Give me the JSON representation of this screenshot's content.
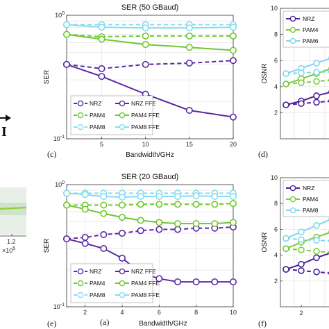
{
  "colors": {
    "nrz": "#5b2aa5",
    "pam4": "#6fc72f",
    "pam8": "#86dcef",
    "nrz_right": "#4b1f97",
    "pam4_right": "#78cc38",
    "pam8_right": "#7fd6ee",
    "left_strip_trace": "#8fd03a"
  },
  "labels": {
    "panel_c": "(c)",
    "panel_d": "(d)",
    "panel_e": "(e)",
    "panel_a": "(a)",
    "panel_f": "(f)",
    "left_tick_12": "1.2",
    "left_exp": "×10",
    "left_exp_power": "5",
    "left_glyph": "I"
  },
  "chart_data": [
    {
      "id": "c",
      "type": "line",
      "title": "SER (50 GBaud)",
      "xlabel": "Bandwidth/GHz",
      "ylabel": "SER",
      "xlim": [
        1,
        20
      ],
      "ylim": [
        0.1,
        1
      ],
      "yscale": "log",
      "xticks": [
        5,
        10,
        15,
        20
      ],
      "yticks": [
        {
          "v": 1,
          "base": "10",
          "exp": "0"
        },
        {
          "v": 0.1,
          "base": "10",
          "exp": "-1"
        }
      ],
      "grid": true,
      "legend_position": "lower-left, two columns",
      "x": [
        1,
        5,
        10,
        15,
        20
      ],
      "series": [
        {
          "name": "NRZ",
          "color_key": "nrz",
          "dashed": true,
          "values": [
            0.4,
            0.37,
            0.4,
            0.41,
            0.43
          ]
        },
        {
          "name": "NRZ FFE",
          "color_key": "nrz",
          "dashed": false,
          "values": [
            0.4,
            0.32,
            0.23,
            0.17,
            0.15
          ]
        },
        {
          "name": "PAM4",
          "color_key": "pam4",
          "dashed": true,
          "values": [
            0.7,
            0.67,
            0.68,
            0.68,
            0.68
          ]
        },
        {
          "name": "PAM4 FFE",
          "color_key": "pam4",
          "dashed": false,
          "values": [
            0.7,
            0.64,
            0.58,
            0.55,
            0.52
          ]
        },
        {
          "name": "PAM8",
          "color_key": "pam8",
          "dashed": true,
          "values": [
            0.84,
            0.84,
            0.84,
            0.84,
            0.84
          ]
        },
        {
          "name": "PAM8 FFE",
          "color_key": "pam8",
          "dashed": false,
          "values": [
            0.84,
            0.8,
            0.79,
            0.79,
            0.8
          ]
        }
      ]
    },
    {
      "id": "e",
      "type": "line",
      "title": "SER (20 GBaud)",
      "xlabel": "Bandwidth/GHz",
      "ylabel": "SER",
      "xlim": [
        1,
        10
      ],
      "ylim": [
        0.1,
        1
      ],
      "yscale": "log",
      "xticks": [
        2,
        4,
        6,
        8,
        10
      ],
      "yticks": [
        {
          "v": 1,
          "base": "10",
          "exp": "0"
        },
        {
          "v": 0.1,
          "base": "10",
          "exp": "-1"
        }
      ],
      "grid": true,
      "legend_position": "lower-left, two columns",
      "x": [
        1,
        2,
        3,
        4,
        5,
        6,
        7,
        8,
        9,
        10
      ],
      "series": [
        {
          "name": "NRZ",
          "color_key": "nrz",
          "dashed": true,
          "values": [
            0.36,
            0.37,
            0.39,
            0.4,
            0.42,
            0.43,
            0.43,
            0.44,
            0.44,
            0.45
          ]
        },
        {
          "name": "NRZ FFE",
          "color_key": "nrz",
          "dashed": false,
          "values": [
            0.36,
            0.33,
            0.3,
            0.25,
            0.19,
            0.17,
            0.16,
            0.16,
            0.16,
            0.16
          ]
        },
        {
          "name": "PAM4",
          "color_key": "pam4",
          "dashed": true,
          "values": [
            0.68,
            0.68,
            0.68,
            0.68,
            0.69,
            0.69,
            0.69,
            0.69,
            0.69,
            0.7
          ]
        },
        {
          "name": "PAM4 FFE",
          "color_key": "pam4",
          "dashed": false,
          "values": [
            0.68,
            0.63,
            0.58,
            0.54,
            0.51,
            0.49,
            0.48,
            0.48,
            0.48,
            0.49
          ]
        },
        {
          "name": "PAM8",
          "color_key": "pam8",
          "dashed": true,
          "values": [
            0.85,
            0.85,
            0.85,
            0.85,
            0.85,
            0.85,
            0.85,
            0.85,
            0.85,
            0.85
          ]
        },
        {
          "name": "PAM8 FFE",
          "color_key": "pam8",
          "dashed": false,
          "values": [
            0.85,
            0.83,
            0.8,
            0.79,
            0.8,
            0.8,
            0.8,
            0.81,
            0.8,
            0.8
          ]
        }
      ]
    },
    {
      "id": "d",
      "type": "line",
      "title": "",
      "xlabel": "",
      "ylabel": "OSNR",
      "ylim": [
        0,
        10
      ],
      "yticks": [
        10,
        8,
        6,
        4,
        2
      ],
      "xticks": [],
      "grid": true,
      "legend_position": "top-left",
      "series": [
        {
          "name": "NRZ",
          "color_key": "nrz_right",
          "dashed": false,
          "values": [
            2.6,
            2.9,
            3.3,
            3.6
          ]
        },
        {
          "name": "NRZ",
          "color_key": "nrz_right",
          "dashed": true,
          "values": [
            2.6,
            2.7,
            2.8,
            2.9
          ]
        },
        {
          "name": "PAM4",
          "color_key": "pam4_right",
          "dashed": false,
          "values": [
            4.2,
            4.6,
            5.0,
            5.4
          ]
        },
        {
          "name": "PAM4",
          "color_key": "pam4_right",
          "dashed": true,
          "values": [
            4.2,
            4.3,
            4.4,
            4.5
          ]
        },
        {
          "name": "PAM6",
          "color_key": "pam8_right",
          "dashed": false,
          "values": [
            5.0,
            5.4,
            5.8,
            6.2
          ]
        },
        {
          "name": "PAM6",
          "color_key": "pam8_right",
          "dashed": true,
          "values": [
            5.0,
            5.05,
            5.1,
            5.15
          ]
        }
      ],
      "legend": [
        "NRZ",
        "PAM4",
        "PAM6"
      ]
    },
    {
      "id": "f",
      "type": "line",
      "title": "",
      "xlabel": "",
      "ylabel": "OSNR",
      "ylim": [
        0,
        10
      ],
      "yticks": [
        10,
        8,
        6,
        4,
        2
      ],
      "xticks": [
        2
      ],
      "grid": true,
      "legend_position": "top-left",
      "series": [
        {
          "name": "NRZ",
          "color_key": "nrz_right",
          "dashed": false,
          "values": [
            2.9,
            3.3,
            3.8,
            4.2
          ]
        },
        {
          "name": "NRZ",
          "color_key": "nrz_right",
          "dashed": true,
          "values": [
            2.9,
            2.8,
            2.7,
            2.6
          ]
        },
        {
          "name": "PAM4",
          "color_key": "pam4_right",
          "dashed": false,
          "values": [
            4.5,
            5.0,
            5.4,
            5.8
          ]
        },
        {
          "name": "PAM4",
          "color_key": "pam4_right",
          "dashed": true,
          "values": [
            4.5,
            4.4,
            4.3,
            4.2
          ]
        },
        {
          "name": "PAM8",
          "color_key": "pam8_right",
          "dashed": false,
          "values": [
            5.3,
            5.8,
            6.3,
            6.8
          ]
        },
        {
          "name": "PAM8",
          "color_key": "pam8_right",
          "dashed": true,
          "values": [
            5.3,
            5.2,
            5.15,
            5.1
          ]
        }
      ],
      "legend": [
        "NRZ",
        "PAM4",
        "PAM8"
      ]
    }
  ]
}
